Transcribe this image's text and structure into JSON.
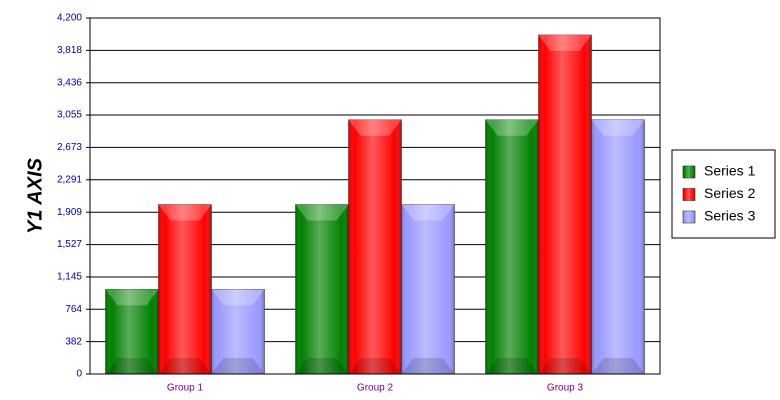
{
  "chart_data": {
    "type": "bar",
    "y_label": "Y1 AXIS",
    "categories": [
      "Group 1",
      "Group 2",
      "Group 3"
    ],
    "series": [
      {
        "name": "Series 1",
        "color": "#008000",
        "values": [
          1000,
          2000,
          3000
        ]
      },
      {
        "name": "Series 2",
        "color": "#ff0000",
        "values": [
          2000,
          3000,
          4000
        ]
      },
      {
        "name": "Series 3",
        "color": "#9999ff",
        "values": [
          1000,
          2000,
          3000
        ]
      }
    ],
    "ylim": [
      0,
      4200
    ],
    "yticks": [
      0,
      382,
      764,
      {
        "value": 1145,
        "label": "1,145"
      },
      {
        "value": 1527,
        "label": "1,527"
      },
      {
        "value": 1909,
        "label": "1,909"
      },
      {
        "value": 2291,
        "label": "2,291"
      },
      {
        "value": 2673,
        "label": "2,673"
      },
      {
        "value": 3055,
        "label": "3,055"
      },
      {
        "value": 3436,
        "label": "3,436"
      },
      {
        "value": 3818,
        "label": "3,818"
      },
      {
        "value": 4200,
        "label": "4,200"
      }
    ],
    "grid": true,
    "legend": "right"
  }
}
